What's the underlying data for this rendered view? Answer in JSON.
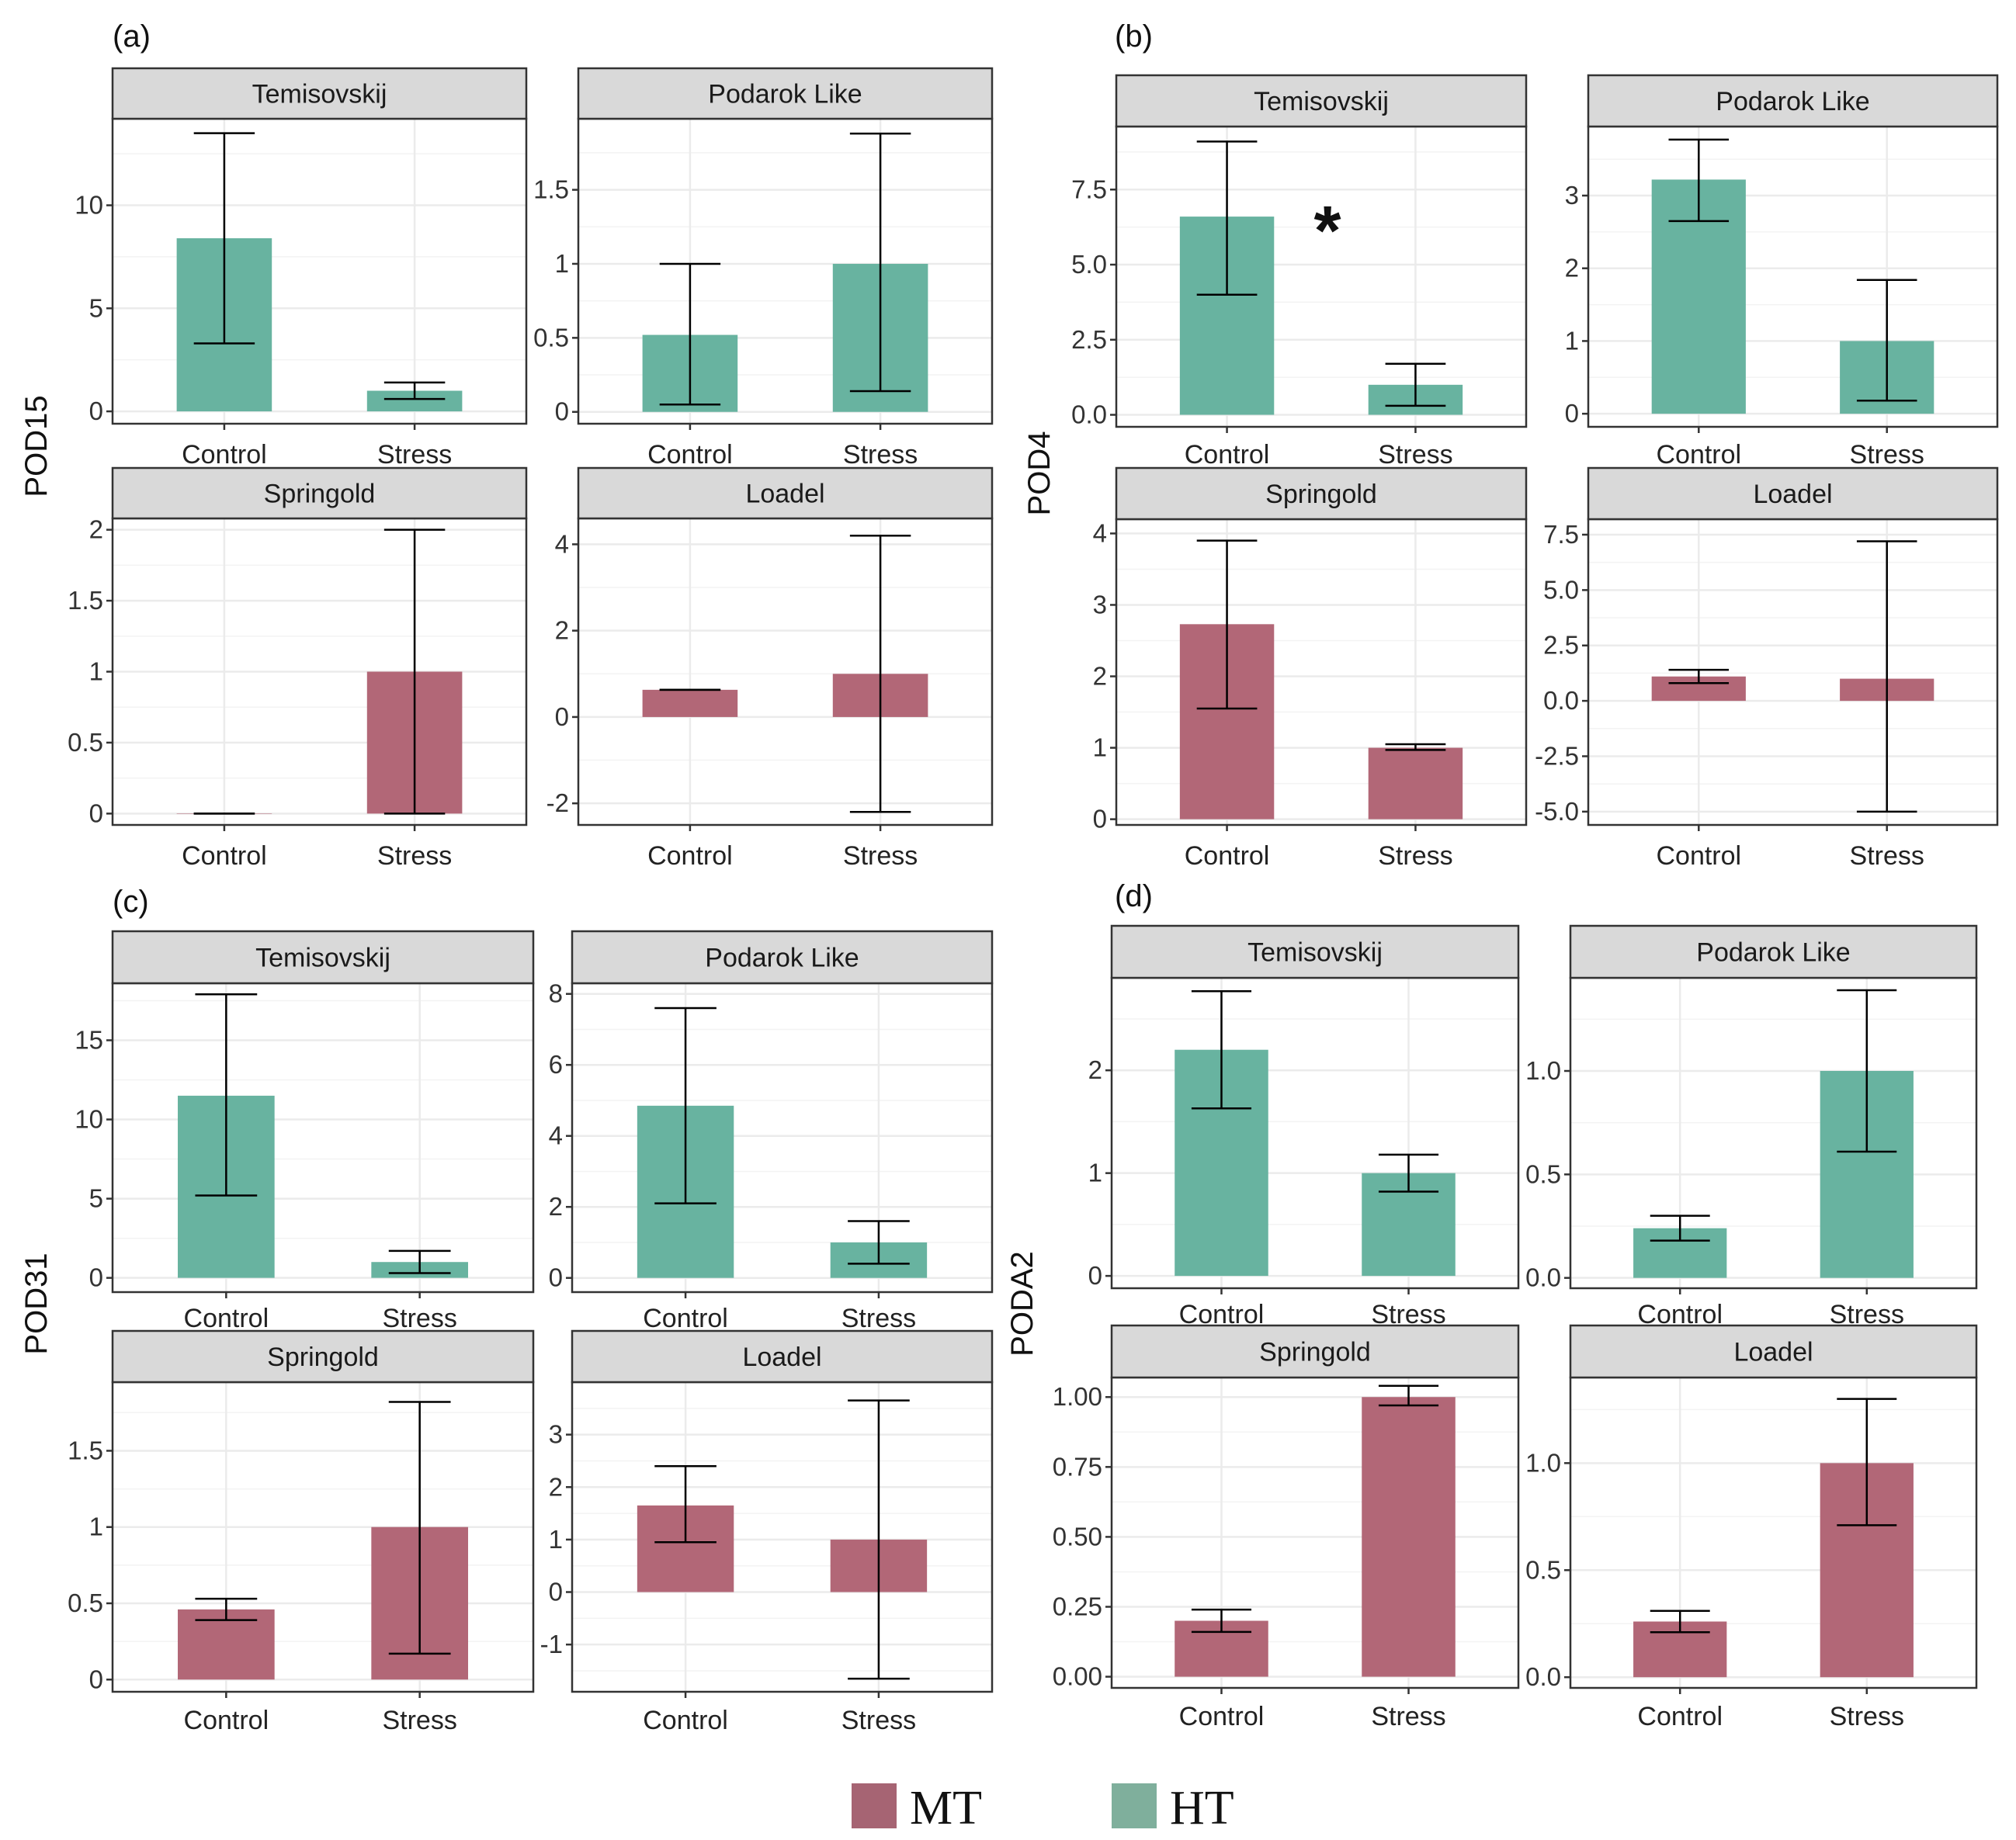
{
  "colors": {
    "MT": "#b26777",
    "HT": "#68b3a0",
    "strip": "#d9d9d9",
    "grid": "#ebebeb",
    "border": "#333333"
  },
  "legend": {
    "items": [
      {
        "key": "MT",
        "label": "MT"
      },
      {
        "key": "HT",
        "label": "HT"
      }
    ]
  },
  "chart_data": [
    {
      "type": "bar",
      "tag": "(a)",
      "ylabel": "POD15",
      "categories": [
        "Control",
        "Stress"
      ],
      "facets": [
        {
          "title": "Temisovskij",
          "group": "HT",
          "ylim": [
            -0.6,
            14.2
          ],
          "ticks": [
            0,
            5,
            10
          ],
          "values": [
            8.4,
            1.0
          ],
          "err_low": [
            3.3,
            0.6
          ],
          "err_high": [
            13.5,
            1.4
          ]
        },
        {
          "title": "Podarok Like",
          "group": "HT",
          "ylim": [
            -0.08,
            1.98
          ],
          "ticks": [
            0.0,
            0.5,
            1.0,
            1.5
          ],
          "values": [
            0.52,
            1.0
          ],
          "err_low": [
            0.05,
            0.14
          ],
          "err_high": [
            1.0,
            1.88
          ]
        },
        {
          "title": "Springold",
          "group": "MT",
          "ylim": [
            -0.08,
            2.08
          ],
          "ticks": [
            0.0,
            0.5,
            1.0,
            1.5,
            2.0
          ],
          "values": [
            0.0,
            1.0
          ],
          "err_low": [
            0.0,
            0.0
          ],
          "err_high": [
            0.0,
            2.0
          ]
        },
        {
          "title": "Loadel",
          "group": "MT",
          "ylim": [
            -2.5,
            4.6
          ],
          "ticks": [
            -2,
            0,
            2,
            4
          ],
          "values": [
            0.63,
            1.0
          ],
          "err_low": [
            0.63,
            -2.2
          ],
          "err_high": [
            0.63,
            4.2
          ]
        }
      ]
    },
    {
      "type": "bar",
      "tag": "(b)",
      "ylabel": "POD4",
      "categories": [
        "Control",
        "Stress"
      ],
      "facets": [
        {
          "title": "Temisovskij",
          "group": "HT",
          "ylim": [
            -0.4,
            9.6
          ],
          "ticks": [
            0.0,
            2.5,
            5.0,
            7.5
          ],
          "tick_labels": [
            "0.0",
            "2.5",
            "5.0",
            "7.5"
          ],
          "values": [
            6.6,
            1.0
          ],
          "err_low": [
            4.0,
            0.3
          ],
          "err_high": [
            9.1,
            1.7
          ],
          "annotation": "*"
        },
        {
          "title": "Podarok Like",
          "group": "HT",
          "ylim": [
            -0.18,
            3.95
          ],
          "ticks": [
            0,
            1,
            2,
            3
          ],
          "values": [
            3.22,
            1.0
          ],
          "err_low": [
            2.65,
            0.18
          ],
          "err_high": [
            3.77,
            1.84
          ]
        },
        {
          "title": "Springold",
          "group": "MT",
          "ylim": [
            -0.08,
            4.2
          ],
          "ticks": [
            0,
            1,
            2,
            3,
            4
          ],
          "values": [
            2.73,
            1.0
          ],
          "err_low": [
            1.55,
            0.97
          ],
          "err_high": [
            3.9,
            1.05
          ]
        },
        {
          "title": "Loadel",
          "group": "MT",
          "ylim": [
            -5.6,
            8.2
          ],
          "ticks": [
            -5.0,
            -2.5,
            0.0,
            2.5,
            5.0,
            7.5
          ],
          "tick_labels": [
            "-5.0",
            "-2.5",
            "0.0",
            "2.5",
            "5.0",
            "7.5"
          ],
          "values": [
            1.1,
            1.0
          ],
          "err_low": [
            0.8,
            -5.0
          ],
          "err_high": [
            1.4,
            7.2
          ]
        }
      ]
    },
    {
      "type": "bar",
      "tag": "(c)",
      "ylabel": "POD31",
      "categories": [
        "Control",
        "Stress"
      ],
      "facets": [
        {
          "title": "Temisovskij",
          "group": "HT",
          "ylim": [
            -0.9,
            18.6
          ],
          "ticks": [
            0,
            5,
            10,
            15
          ],
          "values": [
            11.5,
            1.0
          ],
          "err_low": [
            5.2,
            0.3
          ],
          "err_high": [
            17.9,
            1.7
          ]
        },
        {
          "title": "Podarok Like",
          "group": "HT",
          "ylim": [
            -0.4,
            8.3
          ],
          "ticks": [
            0,
            2,
            4,
            6,
            8
          ],
          "values": [
            4.85,
            1.0
          ],
          "err_low": [
            2.1,
            0.4
          ],
          "err_high": [
            7.6,
            1.6
          ]
        },
        {
          "title": "Springold",
          "group": "MT",
          "ylim": [
            -0.08,
            1.95
          ],
          "ticks": [
            0.0,
            0.5,
            1.0,
            1.5
          ],
          "values": [
            0.46,
            1.0
          ],
          "err_low": [
            0.39,
            0.17
          ],
          "err_high": [
            0.53,
            1.82
          ]
        },
        {
          "title": "Loadel",
          "group": "MT",
          "ylim": [
            -1.9,
            4.0
          ],
          "ticks": [
            -1,
            0,
            1,
            2,
            3
          ],
          "values": [
            1.65,
            1.0
          ],
          "err_low": [
            0.95,
            -1.65
          ],
          "err_high": [
            2.4,
            3.65
          ]
        }
      ]
    },
    {
      "type": "bar",
      "tag": "(d)",
      "ylabel": "PODA2",
      "categories": [
        "Control",
        "Stress"
      ],
      "facets": [
        {
          "title": "Temisovskij",
          "group": "HT",
          "ylim": [
            -0.12,
            2.9
          ],
          "ticks": [
            0,
            1,
            2
          ],
          "values": [
            2.2,
            1.0
          ],
          "err_low": [
            1.63,
            0.82
          ],
          "err_high": [
            2.77,
            1.18
          ]
        },
        {
          "title": "Podarok Like",
          "group": "HT",
          "ylim": [
            -0.05,
            1.45
          ],
          "ticks": [
            0.0,
            0.5,
            1.0
          ],
          "tick_labels": [
            "0.0",
            "0.5",
            "1.0"
          ],
          "values": [
            0.24,
            1.0
          ],
          "err_low": [
            0.18,
            0.61
          ],
          "err_high": [
            0.3,
            1.39
          ]
        },
        {
          "title": "Springold",
          "group": "MT",
          "ylim": [
            -0.04,
            1.07
          ],
          "ticks": [
            0.0,
            0.25,
            0.5,
            0.75,
            1.0
          ],
          "tick_labels": [
            "0.00",
            "0.25",
            "0.50",
            "0.75",
            "1.00"
          ],
          "values": [
            0.2,
            1.0
          ],
          "err_low": [
            0.16,
            0.97
          ],
          "err_high": [
            0.24,
            1.04
          ]
        },
        {
          "title": "Loadel",
          "group": "MT",
          "ylim": [
            -0.05,
            1.4
          ],
          "ticks": [
            0.0,
            0.5,
            1.0
          ],
          "tick_labels": [
            "0.0",
            "0.5",
            "1.0"
          ],
          "values": [
            0.26,
            1.0
          ],
          "err_low": [
            0.21,
            0.71
          ],
          "err_high": [
            0.31,
            1.3
          ]
        }
      ]
    }
  ]
}
